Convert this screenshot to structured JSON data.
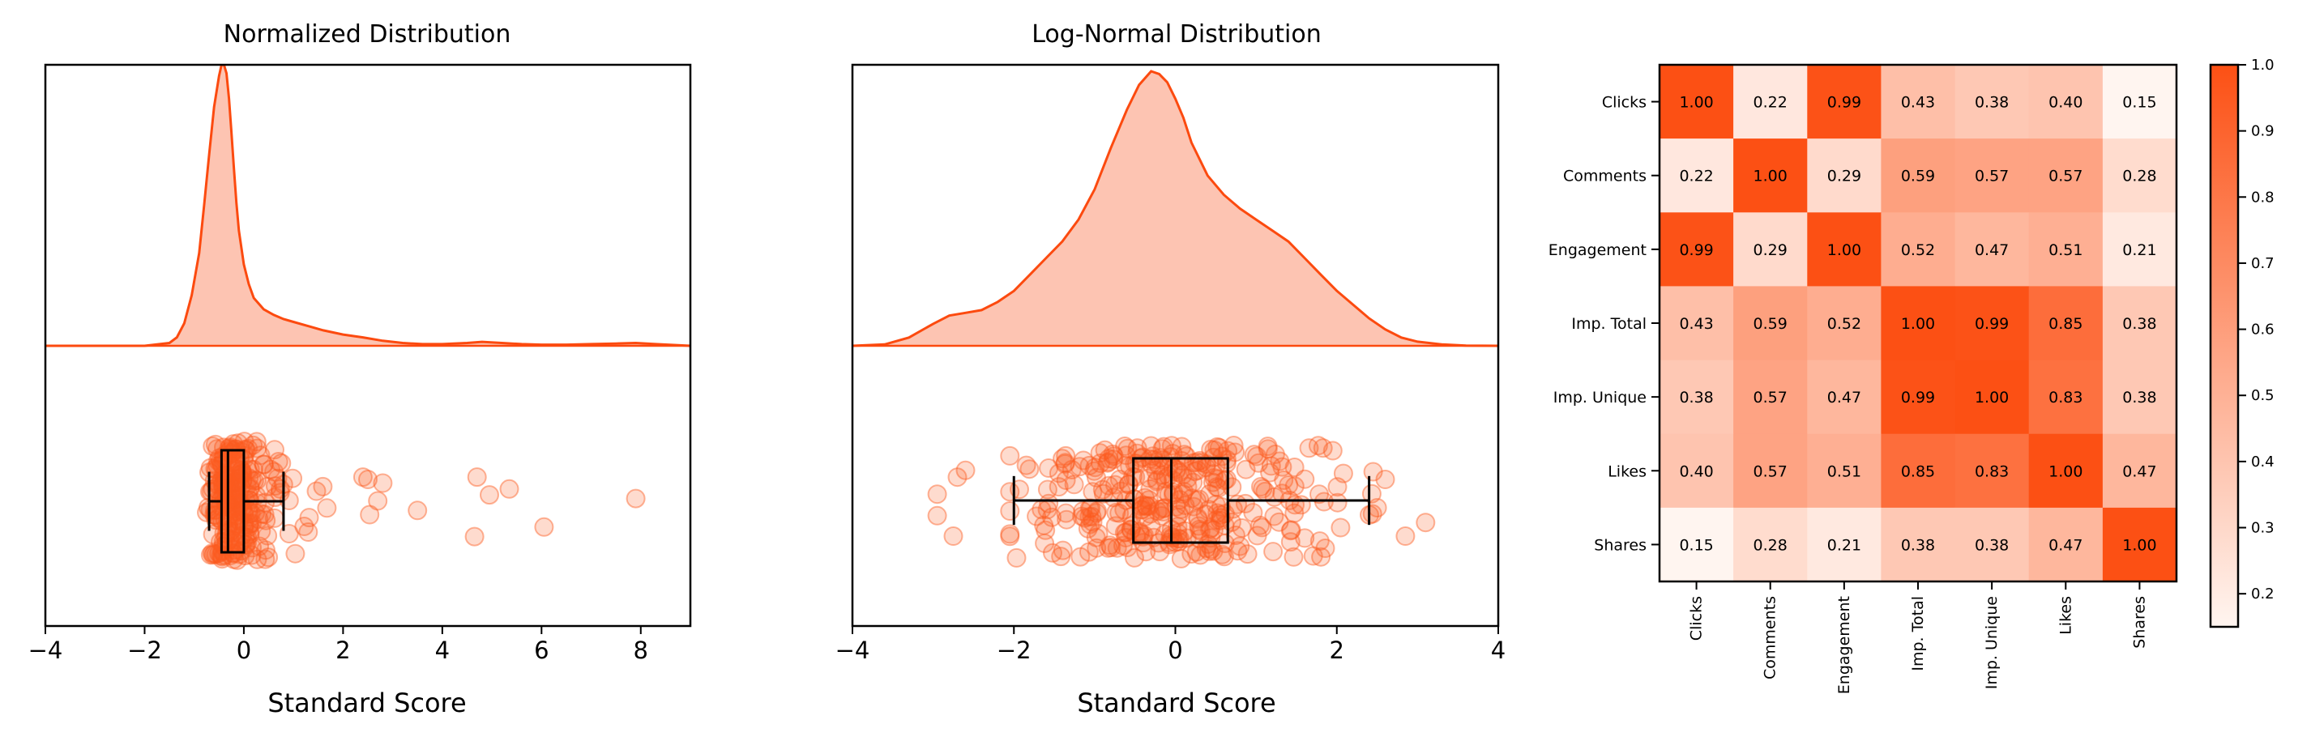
{
  "chart_data": [
    {
      "type": "area",
      "title": "Normalized Distribution",
      "xlabel": "Standard Score",
      "ylabel": "",
      "xlim": [
        -4,
        9
      ],
      "xticks": [
        -4,
        -2,
        0,
        2,
        4,
        6,
        8
      ],
      "xtick_labels": [
        "−4",
        "−2",
        "0",
        "2",
        "4",
        "6",
        "8"
      ],
      "density_peak": 1.0,
      "density": {
        "x": [
          -4.0,
          -2.0,
          -1.5,
          -1.35,
          -1.2,
          -1.05,
          -0.9,
          -0.8,
          -0.7,
          -0.6,
          -0.5,
          -0.45,
          -0.4,
          -0.35,
          -0.3,
          -0.25,
          -0.2,
          -0.15,
          -0.1,
          0.0,
          0.1,
          0.2,
          0.4,
          0.6,
          0.8,
          1.0,
          1.3,
          1.6,
          2.0,
          2.4,
          2.8,
          3.2,
          3.6,
          4.0,
          4.5,
          4.8,
          5.2,
          5.6,
          6.0,
          6.5,
          7.0,
          7.5,
          7.9,
          8.3,
          9.0
        ],
        "y": [
          0.0,
          0.0,
          0.01,
          0.03,
          0.08,
          0.18,
          0.33,
          0.5,
          0.68,
          0.85,
          0.96,
          1.0,
          1.0,
          0.97,
          0.88,
          0.76,
          0.63,
          0.51,
          0.41,
          0.29,
          0.22,
          0.17,
          0.13,
          0.11,
          0.095,
          0.085,
          0.07,
          0.055,
          0.04,
          0.03,
          0.018,
          0.01,
          0.006,
          0.006,
          0.01,
          0.014,
          0.01,
          0.006,
          0.004,
          0.004,
          0.006,
          0.008,
          0.01,
          0.006,
          0.0
        ]
      },
      "boxplot": {
        "whisker_low": -0.7,
        "q1": -0.45,
        "median": -0.32,
        "q3": 0.0,
        "whisker_high": 0.8
      },
      "outliers": [
        {
          "x": 3.5,
          "y": 0.58
        },
        {
          "x": 4.65,
          "y": 0.8
        },
        {
          "x": 4.7,
          "y": 0.3
        },
        {
          "x": 4.95,
          "y": 0.45
        },
        {
          "x": 5.35,
          "y": 0.4
        },
        {
          "x": 6.05,
          "y": 0.72
        },
        {
          "x": 7.9,
          "y": 0.48
        },
        {
          "x": 2.4,
          "y": 0.3
        },
        {
          "x": 2.5,
          "y": 0.32
        },
        {
          "x": 2.8,
          "y": 0.35
        },
        {
          "x": 2.7,
          "y": 0.5
        }
      ],
      "point_color": "#fc5a1f",
      "fill_color": "#fdc4b2",
      "line_color": "#fc4a0f"
    },
    {
      "type": "area",
      "title": "Log-Normal Distribution",
      "xlabel": "Standard Score",
      "ylabel": "",
      "xlim": [
        -4,
        4
      ],
      "xticks": [
        -4,
        -2,
        0,
        2,
        4
      ],
      "xtick_labels": [
        "−4",
        "−2",
        "0",
        "2",
        "4"
      ],
      "density_peak": 1.0,
      "density": {
        "x": [
          -4.0,
          -3.6,
          -3.3,
          -3.0,
          -2.8,
          -2.6,
          -2.4,
          -2.2,
          -2.0,
          -1.8,
          -1.6,
          -1.4,
          -1.2,
          -1.0,
          -0.8,
          -0.6,
          -0.45,
          -0.3,
          -0.2,
          -0.1,
          0.0,
          0.1,
          0.2,
          0.4,
          0.6,
          0.8,
          1.0,
          1.2,
          1.4,
          1.6,
          1.8,
          2.0,
          2.2,
          2.4,
          2.6,
          2.8,
          3.0,
          3.3,
          3.6,
          4.0
        ],
        "y": [
          0.0,
          0.005,
          0.03,
          0.08,
          0.11,
          0.12,
          0.13,
          0.16,
          0.2,
          0.26,
          0.32,
          0.38,
          0.46,
          0.57,
          0.72,
          0.86,
          0.95,
          1.0,
          0.99,
          0.96,
          0.9,
          0.83,
          0.74,
          0.62,
          0.55,
          0.5,
          0.46,
          0.42,
          0.38,
          0.32,
          0.26,
          0.2,
          0.15,
          0.1,
          0.06,
          0.03,
          0.015,
          0.005,
          0.001,
          0.0
        ]
      },
      "boxplot": {
        "whisker_low": -2.0,
        "q1": -0.52,
        "median": -0.05,
        "q3": 0.65,
        "whisker_high": 2.4
      },
      "outliers": [
        {
          "x": -2.95,
          "y": 0.43
        },
        {
          "x": -2.75,
          "y": 0.8
        },
        {
          "x": -2.6,
          "y": 0.22
        },
        {
          "x": -2.7,
          "y": 0.28
        },
        {
          "x": 2.6,
          "y": 0.3
        },
        {
          "x": 2.85,
          "y": 0.8
        },
        {
          "x": 3.1,
          "y": 0.68
        },
        {
          "x": 2.5,
          "y": 0.55
        },
        {
          "x": -2.95,
          "y": 0.62
        }
      ],
      "point_color": "#fc5a1f",
      "fill_color": "#fdc4b2",
      "line_color": "#fc4a0f"
    },
    {
      "type": "heatmap",
      "title": "",
      "labels": [
        "Clicks",
        "Comments",
        "Engagement",
        "Imp. Total",
        "Imp. Unique",
        "Likes",
        "Shares"
      ],
      "matrix": [
        [
          1.0,
          0.22,
          0.99,
          0.43,
          0.38,
          0.4,
          0.15
        ],
        [
          0.22,
          1.0,
          0.29,
          0.59,
          0.57,
          0.57,
          0.28
        ],
        [
          0.99,
          0.29,
          1.0,
          0.52,
          0.47,
          0.51,
          0.21
        ],
        [
          0.43,
          0.59,
          0.52,
          1.0,
          0.99,
          0.85,
          0.38
        ],
        [
          0.38,
          0.57,
          0.47,
          0.99,
          1.0,
          0.83,
          0.38
        ],
        [
          0.4,
          0.57,
          0.51,
          0.85,
          0.83,
          1.0,
          0.47
        ],
        [
          0.15,
          0.28,
          0.21,
          0.38,
          0.38,
          0.47,
          1.0
        ]
      ],
      "vmin": 0.15,
      "vmax": 1.0,
      "colorbar_ticks": [
        0.2,
        0.3,
        0.4,
        0.5,
        0.6,
        0.7,
        0.8,
        0.9,
        1.0
      ],
      "colorbar_tick_labels": [
        "0.2",
        "0.3",
        "0.4",
        "0.5",
        "0.6",
        "0.7",
        "0.8",
        "0.9",
        "1.0"
      ],
      "color_low": "#fff5f0",
      "color_high": "#fc5014"
    }
  ]
}
